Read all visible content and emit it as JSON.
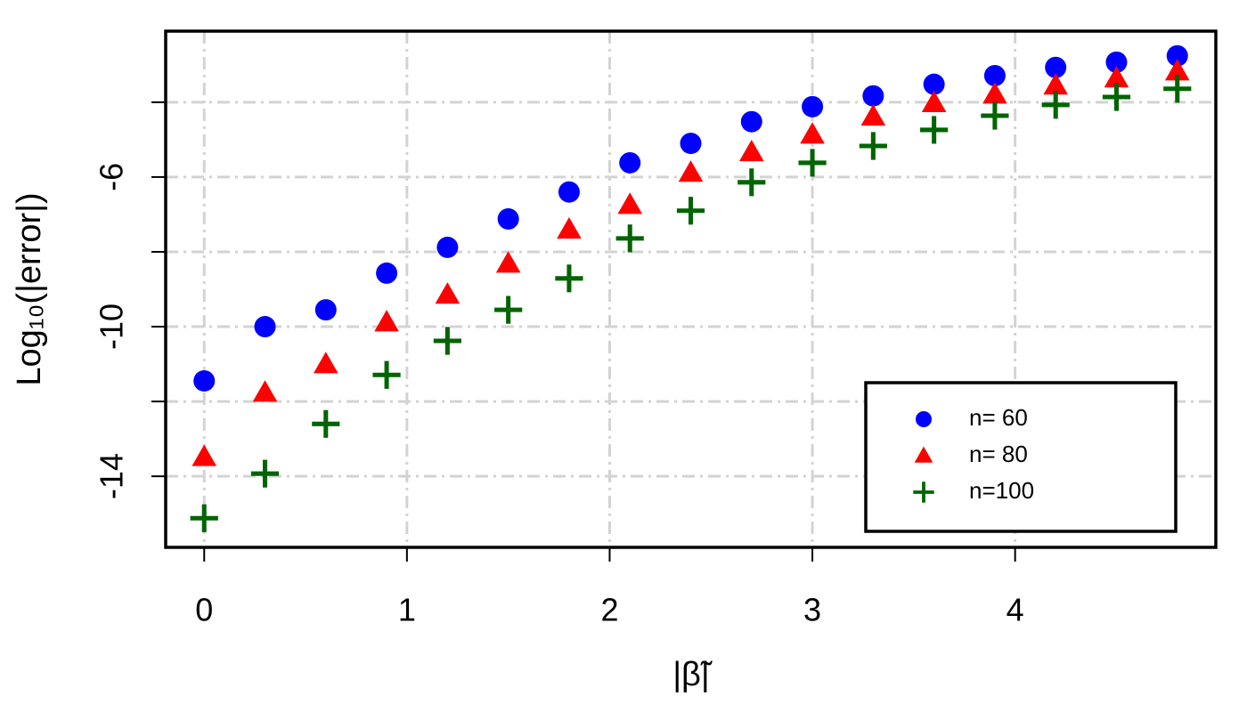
{
  "chart_data": {
    "type": "scatter",
    "x_label": "|β̃|",
    "y_label": "Log₁₀(|error|)",
    "x": [
      0,
      0.3,
      0.6,
      0.9,
      1.2,
      1.5,
      1.8,
      2.1,
      2.4,
      2.7,
      3.0,
      3.3,
      3.6,
      3.9,
      4.2,
      4.5,
      4.8
    ],
    "series": [
      {
        "name": "n= 60",
        "color": "#0000ff",
        "marker": "circle",
        "values": [
          -11.45,
          -10.0,
          -9.55,
          -8.57,
          -7.88,
          -7.12,
          -6.4,
          -5.62,
          -5.1,
          -4.52,
          -4.12,
          -3.83,
          -3.52,
          -3.29,
          -3.07,
          -2.93,
          -2.76
        ]
      },
      {
        "name": "n= 80",
        "color": "#ff0000",
        "marker": "triangle",
        "values": [
          -13.48,
          -11.76,
          -11.0,
          -9.88,
          -9.14,
          -8.31,
          -7.4,
          -6.74,
          -5.88,
          -5.33,
          -4.86,
          -4.38,
          -4.02,
          -3.79,
          -3.55,
          -3.36,
          -3.17
        ]
      },
      {
        "name": "n=100",
        "color": "#006400",
        "marker": "plus",
        "values": [
          -15.12,
          -13.93,
          -12.6,
          -11.29,
          -10.38,
          -9.55,
          -8.71,
          -7.64,
          -6.9,
          -6.14,
          -5.62,
          -5.17,
          -4.74,
          -4.36,
          -4.07,
          -3.86,
          -3.64
        ]
      }
    ],
    "xlim": [
      -0.19,
      4.99
    ],
    "ylim": [
      -15.9,
      -2.1
    ],
    "xticks": [
      0,
      1,
      2,
      3,
      4
    ],
    "yticks": [
      -14,
      -10,
      -6
    ],
    "ygrid": [
      -14,
      -12,
      -10,
      -8,
      -6,
      -4
    ],
    "grid": true,
    "legend": "bottom-right"
  }
}
